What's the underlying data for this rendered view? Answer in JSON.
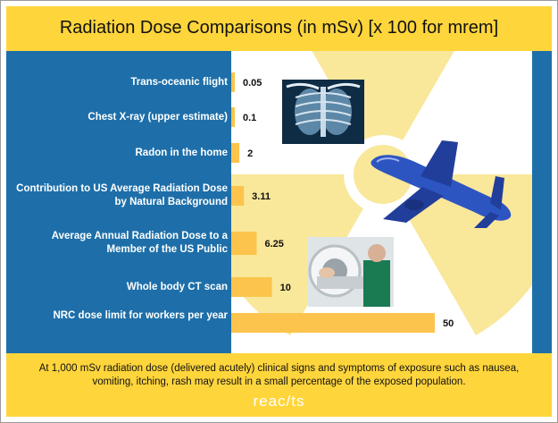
{
  "title": "Radiation Dose Comparisons (in mSv) [x 100 for mrem]",
  "chart_data": {
    "type": "bar",
    "orientation": "horizontal",
    "categories": [
      "Trans-oceanic flight",
      "Chest X-ray (upper estimate)",
      "Radon in the home",
      "Contribution to US Average Radiation Dose by Natural Background",
      "Average Annual Radiation Dose to a Member of the US Public",
      "Whole body CT scan",
      "NRC dose limit for workers per year"
    ],
    "values": [
      0.05,
      0.1,
      2,
      3.11,
      6.25,
      10,
      50
    ],
    "value_labels": [
      "0.05",
      "0.1",
      "2",
      "3.11",
      "6.25",
      "10",
      "50"
    ],
    "bar_color": "#fcc44c",
    "grid": false,
    "legend": "none"
  },
  "colors": {
    "header": "#ffd53c",
    "panel": "#1e6fa9",
    "trefoil": "#f9e79a",
    "bar": "#fcc44c"
  },
  "decorations": [
    "radiation-trefoil",
    "chest-xray-image",
    "airplane-image",
    "ct-scanner-photo"
  ],
  "footer_note": "At 1,000 mSv radiation dose (delivered acutely) clinical signs and symptoms of exposure such as nausea, vomiting, itching, rash may result in a small percentage of the exposed population.",
  "logo_text": "reacts"
}
